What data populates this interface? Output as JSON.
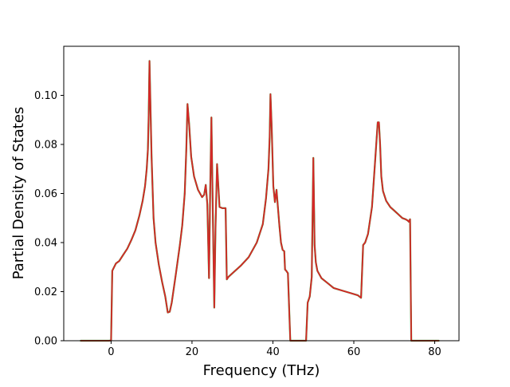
{
  "chart_data": {
    "type": "line",
    "title": "",
    "xlabel": "Frequency (THz)",
    "ylabel": "Partial Density of States",
    "xlim": [
      -11.7,
      86.0
    ],
    "ylim": [
      0.0,
      0.12
    ],
    "xticks": [
      0,
      20,
      40,
      60,
      80
    ],
    "xtick_labels": [
      "0",
      "20",
      "40",
      "60",
      "80"
    ],
    "yticks": [
      0.0,
      0.02,
      0.04,
      0.06,
      0.08,
      0.1
    ],
    "ytick_labels": [
      "0.00",
      "0.02",
      "0.04",
      "0.06",
      "0.08",
      "0.10"
    ],
    "grid": false,
    "legend": "none",
    "series": [
      {
        "color": "#d62728",
        "overlay_color": "#2ca02c",
        "x": [
          -7.5,
          -0.5,
          0.0,
          0.3,
          0.6,
          1.2,
          2.0,
          3.0,
          4.0,
          5.0,
          6.0,
          7.0,
          7.8,
          8.4,
          8.8,
          9.1,
          9.3,
          9.5,
          9.7,
          10.0,
          10.5,
          11.0,
          11.8,
          12.6,
          13.4,
          14.0,
          14.5,
          15.0,
          16.0,
          17.0,
          17.6,
          18.2,
          18.6,
          18.9,
          19.3,
          19.8,
          20.5,
          21.5,
          22.5,
          23.0,
          23.4,
          23.8,
          24.2,
          24.5,
          24.8,
          25.2,
          25.5,
          25.8,
          26.2,
          26.8,
          27.5,
          28.3,
          28.6,
          29.0,
          30.0,
          32.0,
          34.0,
          36.0,
          37.5,
          38.3,
          38.9,
          39.2,
          39.4,
          39.7,
          40.1,
          40.5,
          40.9,
          41.2,
          41.6,
          42.0,
          42.4,
          42.8,
          43.0,
          43.3,
          43.7,
          44.3,
          44.8,
          48.2,
          48.6,
          49.1,
          49.6,
          50.0,
          50.3,
          50.6,
          51.0,
          52.0,
          53.5,
          55.0,
          57.0,
          59.0,
          61.0,
          61.8,
          62.3,
          62.8,
          63.5,
          64.5,
          65.3,
          65.9,
          66.2,
          66.5,
          66.8,
          67.2,
          68.0,
          69.0,
          70.0,
          71.0,
          72.0,
          72.8,
          73.3,
          73.6,
          73.9,
          74.2,
          74.5,
          75.0,
          81.0
        ],
        "y": [
          0.0,
          0.0,
          0.0001,
          0.0285,
          0.0295,
          0.0315,
          0.0325,
          0.035,
          0.0375,
          0.041,
          0.045,
          0.051,
          0.057,
          0.063,
          0.07,
          0.078,
          0.092,
          0.114,
          0.099,
          0.075,
          0.05,
          0.04,
          0.031,
          0.024,
          0.018,
          0.0115,
          0.0118,
          0.0155,
          0.027,
          0.039,
          0.047,
          0.06,
          0.078,
          0.0965,
          0.088,
          0.075,
          0.067,
          0.0615,
          0.0585,
          0.0595,
          0.0635,
          0.0555,
          0.0255,
          0.062,
          0.091,
          0.0475,
          0.0135,
          0.0455,
          0.072,
          0.0545,
          0.054,
          0.054,
          0.025,
          0.026,
          0.0275,
          0.0305,
          0.034,
          0.04,
          0.0475,
          0.058,
          0.07,
          0.083,
          0.1005,
          0.0875,
          0.063,
          0.0565,
          0.0615,
          0.055,
          0.047,
          0.04,
          0.037,
          0.0365,
          0.029,
          0.0285,
          0.0275,
          0.0,
          0.0,
          0.0,
          0.0155,
          0.018,
          0.026,
          0.0745,
          0.039,
          0.032,
          0.0285,
          0.0255,
          0.0235,
          0.0215,
          0.0205,
          0.0195,
          0.0185,
          0.0175,
          0.039,
          0.04,
          0.0435,
          0.0545,
          0.074,
          0.089,
          0.089,
          0.08,
          0.067,
          0.061,
          0.057,
          0.0545,
          0.053,
          0.0515,
          0.05,
          0.0495,
          0.049,
          0.0485,
          0.0495,
          0.0,
          0.0,
          0.0,
          0.0
        ]
      }
    ]
  }
}
